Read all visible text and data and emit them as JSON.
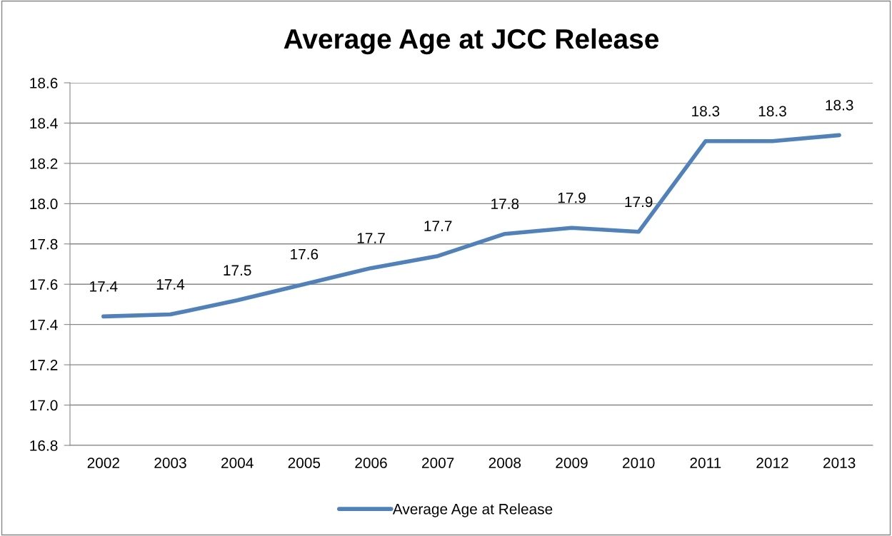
{
  "chart_data": {
    "type": "line",
    "title": "Average Age at JCC Release",
    "categories": [
      "2002",
      "2003",
      "2004",
      "2005",
      "2006",
      "2007",
      "2008",
      "2009",
      "2010",
      "2011",
      "2012",
      "2013"
    ],
    "series": [
      {
        "name": "Average Age at Release",
        "color": "#4f81bd",
        "values": [
          17.44,
          17.45,
          17.52,
          17.6,
          17.68,
          17.74,
          17.85,
          17.88,
          17.86,
          18.31,
          18.31,
          18.34
        ],
        "value_labels": [
          "17.4",
          "17.4",
          "17.5",
          "17.6",
          "17.7",
          "17.7",
          "17.8",
          "17.9",
          "17.9",
          "18.3",
          "18.3",
          "18.3"
        ]
      }
    ],
    "ylim": [
      16.8,
      18.6
    ],
    "yticks": [
      {
        "value": 16.8,
        "label": "16.8"
      },
      {
        "value": 17.0,
        "label": "17.0"
      },
      {
        "value": 17.2,
        "label": "17.2"
      },
      {
        "value": 17.4,
        "label": "17.4"
      },
      {
        "value": 17.6,
        "label": "17.6"
      },
      {
        "value": 17.8,
        "label": "17.8"
      },
      {
        "value": 18.0,
        "label": "18.0"
      },
      {
        "value": 18.2,
        "label": "18.2"
      },
      {
        "value": 18.4,
        "label": "18.4"
      },
      {
        "value": 18.6,
        "label": "18.6"
      }
    ],
    "grid": "y",
    "legend": "bottom",
    "marker": "none",
    "line_style": "solid"
  }
}
